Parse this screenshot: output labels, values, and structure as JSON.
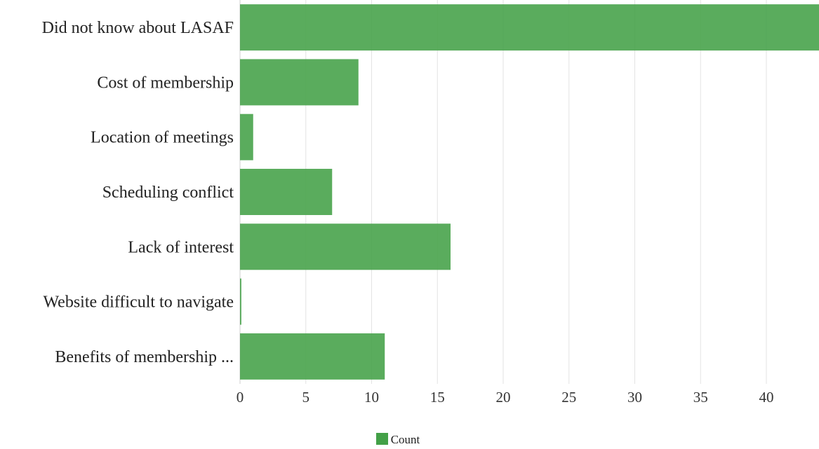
{
  "chart_data": {
    "type": "bar",
    "orientation": "horizontal",
    "categories": [
      "Did not know about LASAF",
      "Cost of membership",
      "Location of meetings",
      "Scheduling conflict",
      "Lack of interest",
      "Website difficult to navigate",
      "Benefits of membership ..."
    ],
    "series": [
      {
        "name": "Count",
        "values": [
          44,
          9,
          1,
          7,
          16,
          0.1,
          11
        ],
        "color": "#43a047"
      }
    ],
    "xlim": [
      0,
      44
    ],
    "xticks": [
      0,
      5,
      10,
      15,
      20,
      25,
      30,
      35,
      40
    ],
    "grid": true,
    "legend": "bottom-center"
  }
}
